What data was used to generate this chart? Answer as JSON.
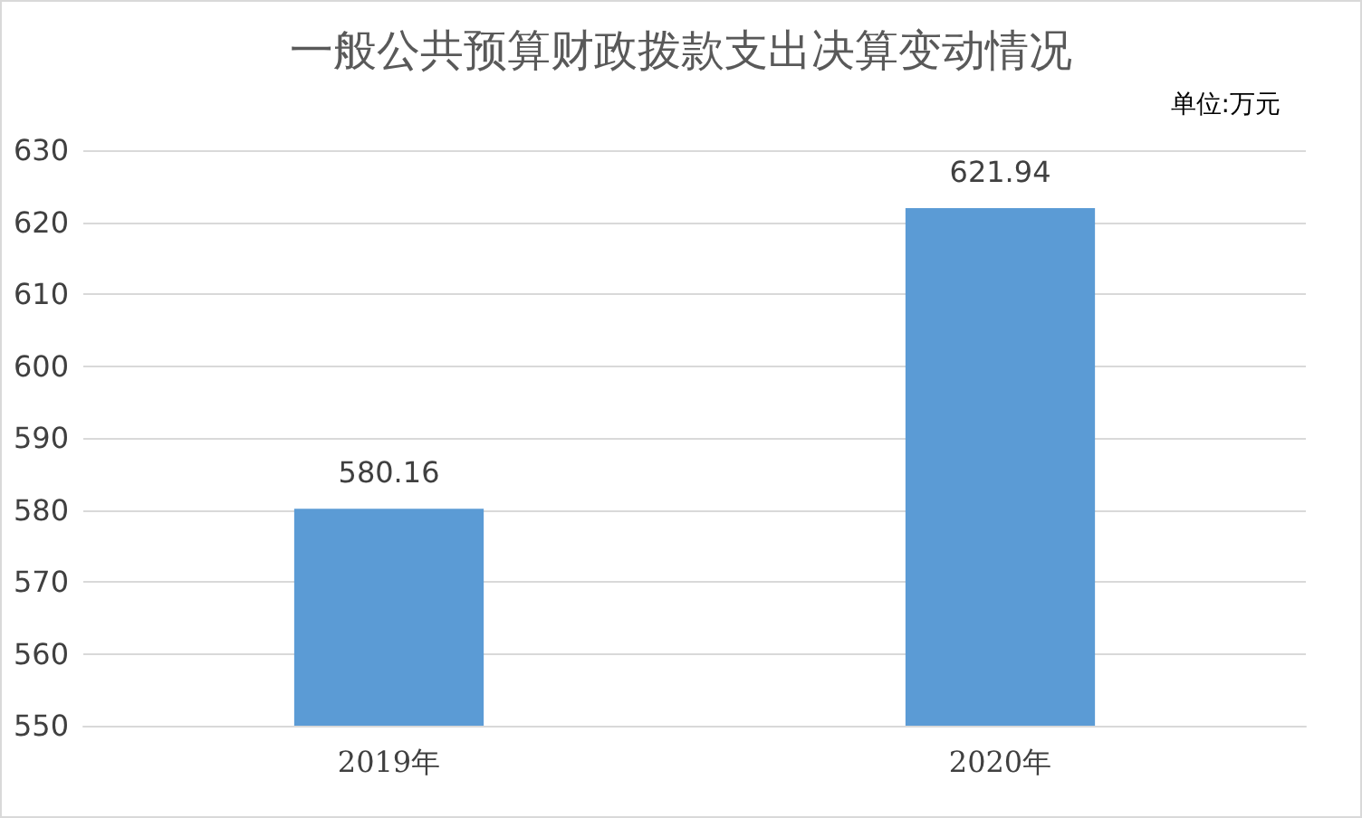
{
  "chart_data": {
    "type": "bar",
    "title": "一般公共预算财政拨款支出决算变动情况",
    "annotations": [
      "单位:万元"
    ],
    "categories": [
      "2019年",
      "2020年"
    ],
    "values": [
      580.16,
      621.94
    ],
    "color": "#5b9bd5",
    "ylim": [
      550,
      630
    ],
    "yticks": [
      550,
      560,
      570,
      580,
      590,
      600,
      610,
      620,
      630
    ],
    "grid": "y",
    "data_labels": true
  }
}
